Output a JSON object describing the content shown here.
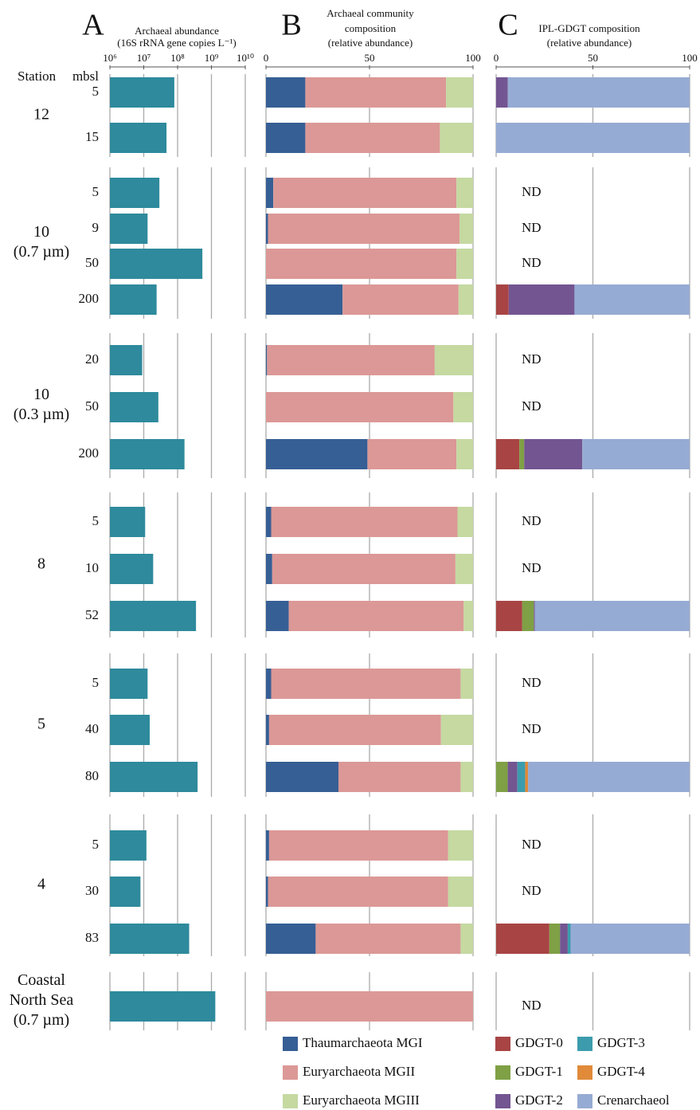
{
  "chart_data": [
    {
      "type": "bar",
      "orientation": "horizontal",
      "panel": "A",
      "title": "Archaeal abundance",
      "subtitle": "(16S rRNA gene copies L⁻¹)",
      "row_header": [
        "Station",
        "mbsl"
      ],
      "xlog": true,
      "xlim": [
        1000000,
        10000000000
      ],
      "xticks": [
        {
          "value": 1000000,
          "label": "10⁶"
        },
        {
          "value": 10000000,
          "label": "10⁷"
        },
        {
          "value": 100000000,
          "label": "10⁸"
        },
        {
          "value": 1000000000,
          "label": "10⁹"
        },
        {
          "value": 10000000000,
          "label": "10¹⁰"
        }
      ],
      "grid": true,
      "color": "#2e8a9c",
      "groups": [
        {
          "name": [
            "12"
          ],
          "categories": [
            "5",
            "15"
          ],
          "values": [
            80000000,
            47000000
          ]
        },
        {
          "name": [
            "10",
            "(0.7 µm)"
          ],
          "categories": [
            "5",
            "9",
            "50",
            "200"
          ],
          "values": [
            29000000,
            13000000,
            540000000,
            24000000
          ]
        },
        {
          "name": [
            "10",
            "(0.3 µm)"
          ],
          "categories": [
            "20",
            "50",
            "200"
          ],
          "values": [
            9000000,
            27000000,
            160000000
          ]
        },
        {
          "name": [
            "8"
          ],
          "categories": [
            "5",
            "10",
            "52"
          ],
          "values": [
            11000000,
            19000000,
            350000000
          ]
        },
        {
          "name": [
            "5"
          ],
          "categories": [
            "5",
            "40",
            "80"
          ],
          "values": [
            13000000,
            15000000,
            390000000
          ]
        },
        {
          "name": [
            "4"
          ],
          "categories": [
            "5",
            "30",
            "83"
          ],
          "values": [
            12000000,
            8000000,
            220000000
          ]
        },
        {
          "name": [
            "Coastal",
            "North Sea",
            "(0.7 µm)"
          ],
          "categories": [
            null
          ],
          "values": [
            1300000000
          ]
        }
      ]
    },
    {
      "type": "stacked_bar",
      "orientation": "horizontal",
      "panel": "B",
      "title": [
        "Archaeal community",
        "composition",
        "(relative abundance)"
      ],
      "xlim": [
        0,
        100
      ],
      "xticks": [
        0,
        50,
        100
      ],
      "grid": true,
      "series": [
        {
          "name": "Thaumarchaeota MGI",
          "color": "#365f95",
          "values": [
            19,
            19,
            3.5,
            1,
            0,
            37,
            0.5,
            0,
            49,
            2.5,
            3,
            11,
            2.5,
            1.5,
            35,
            1.5,
            1,
            24,
            0
          ]
        },
        {
          "name": "Euryarchaeota MGII",
          "color": "#db9896",
          "values": [
            68,
            65,
            88.5,
            92.5,
            92,
            56,
            81,
            90.5,
            43,
            90,
            88.5,
            84.5,
            91.5,
            83,
            59,
            86.5,
            87,
            70,
            100
          ]
        },
        {
          "name": "Euryarchaeota MGIII",
          "color": "#c5d9a1",
          "values": [
            13,
            16,
            8,
            6.5,
            8,
            7,
            18.5,
            9.5,
            8,
            7.5,
            8.5,
            4.5,
            6,
            15.5,
            6,
            12,
            12,
            6,
            0
          ]
        }
      ]
    },
    {
      "type": "stacked_bar",
      "orientation": "horizontal",
      "panel": "C",
      "title": [
        "IPL-GDGT composition",
        "(relative abundance)"
      ],
      "xlim": [
        0,
        100
      ],
      "xticks": [
        0,
        50,
        100
      ],
      "grid": true,
      "missing_label": "ND",
      "series": [
        {
          "name": "GDGT-0",
          "color": "#a84444",
          "values": [
            0,
            0,
            null,
            null,
            null,
            6.5,
            null,
            null,
            12,
            null,
            null,
            13.5,
            null,
            null,
            0,
            null,
            null,
            27.5,
            null
          ]
        },
        {
          "name": "GDGT-1",
          "color": "#7fa045",
          "values": [
            0,
            0,
            null,
            null,
            null,
            0,
            null,
            null,
            2.5,
            null,
            null,
            6,
            null,
            null,
            6,
            null,
            null,
            5.5,
            null
          ]
        },
        {
          "name": "GDGT-2",
          "color": "#735591",
          "values": [
            6,
            0,
            null,
            null,
            null,
            34,
            null,
            null,
            30,
            null,
            null,
            0.5,
            null,
            null,
            5,
            null,
            null,
            4,
            null
          ]
        },
        {
          "name": "GDGT-3",
          "color": "#3c9cad",
          "values": [
            0,
            0,
            null,
            null,
            null,
            0,
            null,
            null,
            0,
            null,
            null,
            0,
            null,
            null,
            4,
            null,
            null,
            1.5,
            null
          ]
        },
        {
          "name": "GDGT-4",
          "color": "#e08a3a",
          "values": [
            0,
            0,
            null,
            null,
            null,
            0,
            null,
            null,
            0,
            null,
            null,
            0,
            null,
            null,
            1.5,
            null,
            null,
            0,
            null
          ]
        },
        {
          "name": "Crenarchaeol",
          "color": "#96abd3",
          "values": [
            94,
            100,
            null,
            null,
            null,
            59.5,
            null,
            null,
            55.5,
            null,
            null,
            80,
            null,
            null,
            83.5,
            null,
            null,
            61.5,
            null
          ]
        }
      ]
    }
  ]
}
